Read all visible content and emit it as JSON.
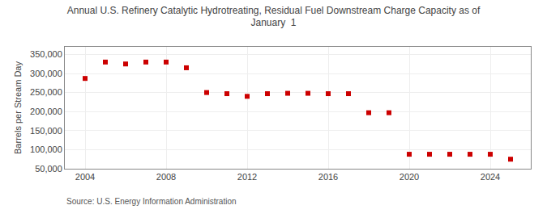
{
  "chart_data": {
    "type": "scatter",
    "title": "Annual U.S. Refinery Catalytic Hydrotreating, Residual Fuel Downstream Charge Capacity as of\nJanuary  1",
    "ylabel": "Barrels per Stream Day",
    "source": "Source: U.S. Energy Information Administration",
    "x": [
      2004,
      2005,
      2006,
      2007,
      2008,
      2009,
      2010,
      2011,
      2012,
      2013,
      2014,
      2015,
      2016,
      2017,
      2018,
      2019,
      2020,
      2021,
      2022,
      2023,
      2024,
      2025
    ],
    "values": [
      287000,
      330000,
      325000,
      330000,
      330000,
      315000,
      250000,
      247000,
      240000,
      247000,
      248000,
      248000,
      247000,
      247000,
      197000,
      197000,
      88000,
      88000,
      88000,
      88000,
      88000,
      75000
    ],
    "color": "#cc0000",
    "marker": "square",
    "grid": true,
    "xlim": [
      2003.0,
      2026.0
    ],
    "xticks": [
      2004,
      2008,
      2012,
      2016,
      2020,
      2024
    ],
    "ylim": [
      50000,
      370000
    ],
    "yticks": [
      {
        "value": 50000,
        "label": "50,000"
      },
      {
        "value": 100000,
        "label": "100,000"
      },
      {
        "value": 150000,
        "label": "150,000"
      },
      {
        "value": 200000,
        "label": "200,000"
      },
      {
        "value": 250000,
        "label": "250,000"
      },
      {
        "value": 300000,
        "label": "300,000"
      },
      {
        "value": 350000,
        "label": "350,000"
      }
    ]
  }
}
